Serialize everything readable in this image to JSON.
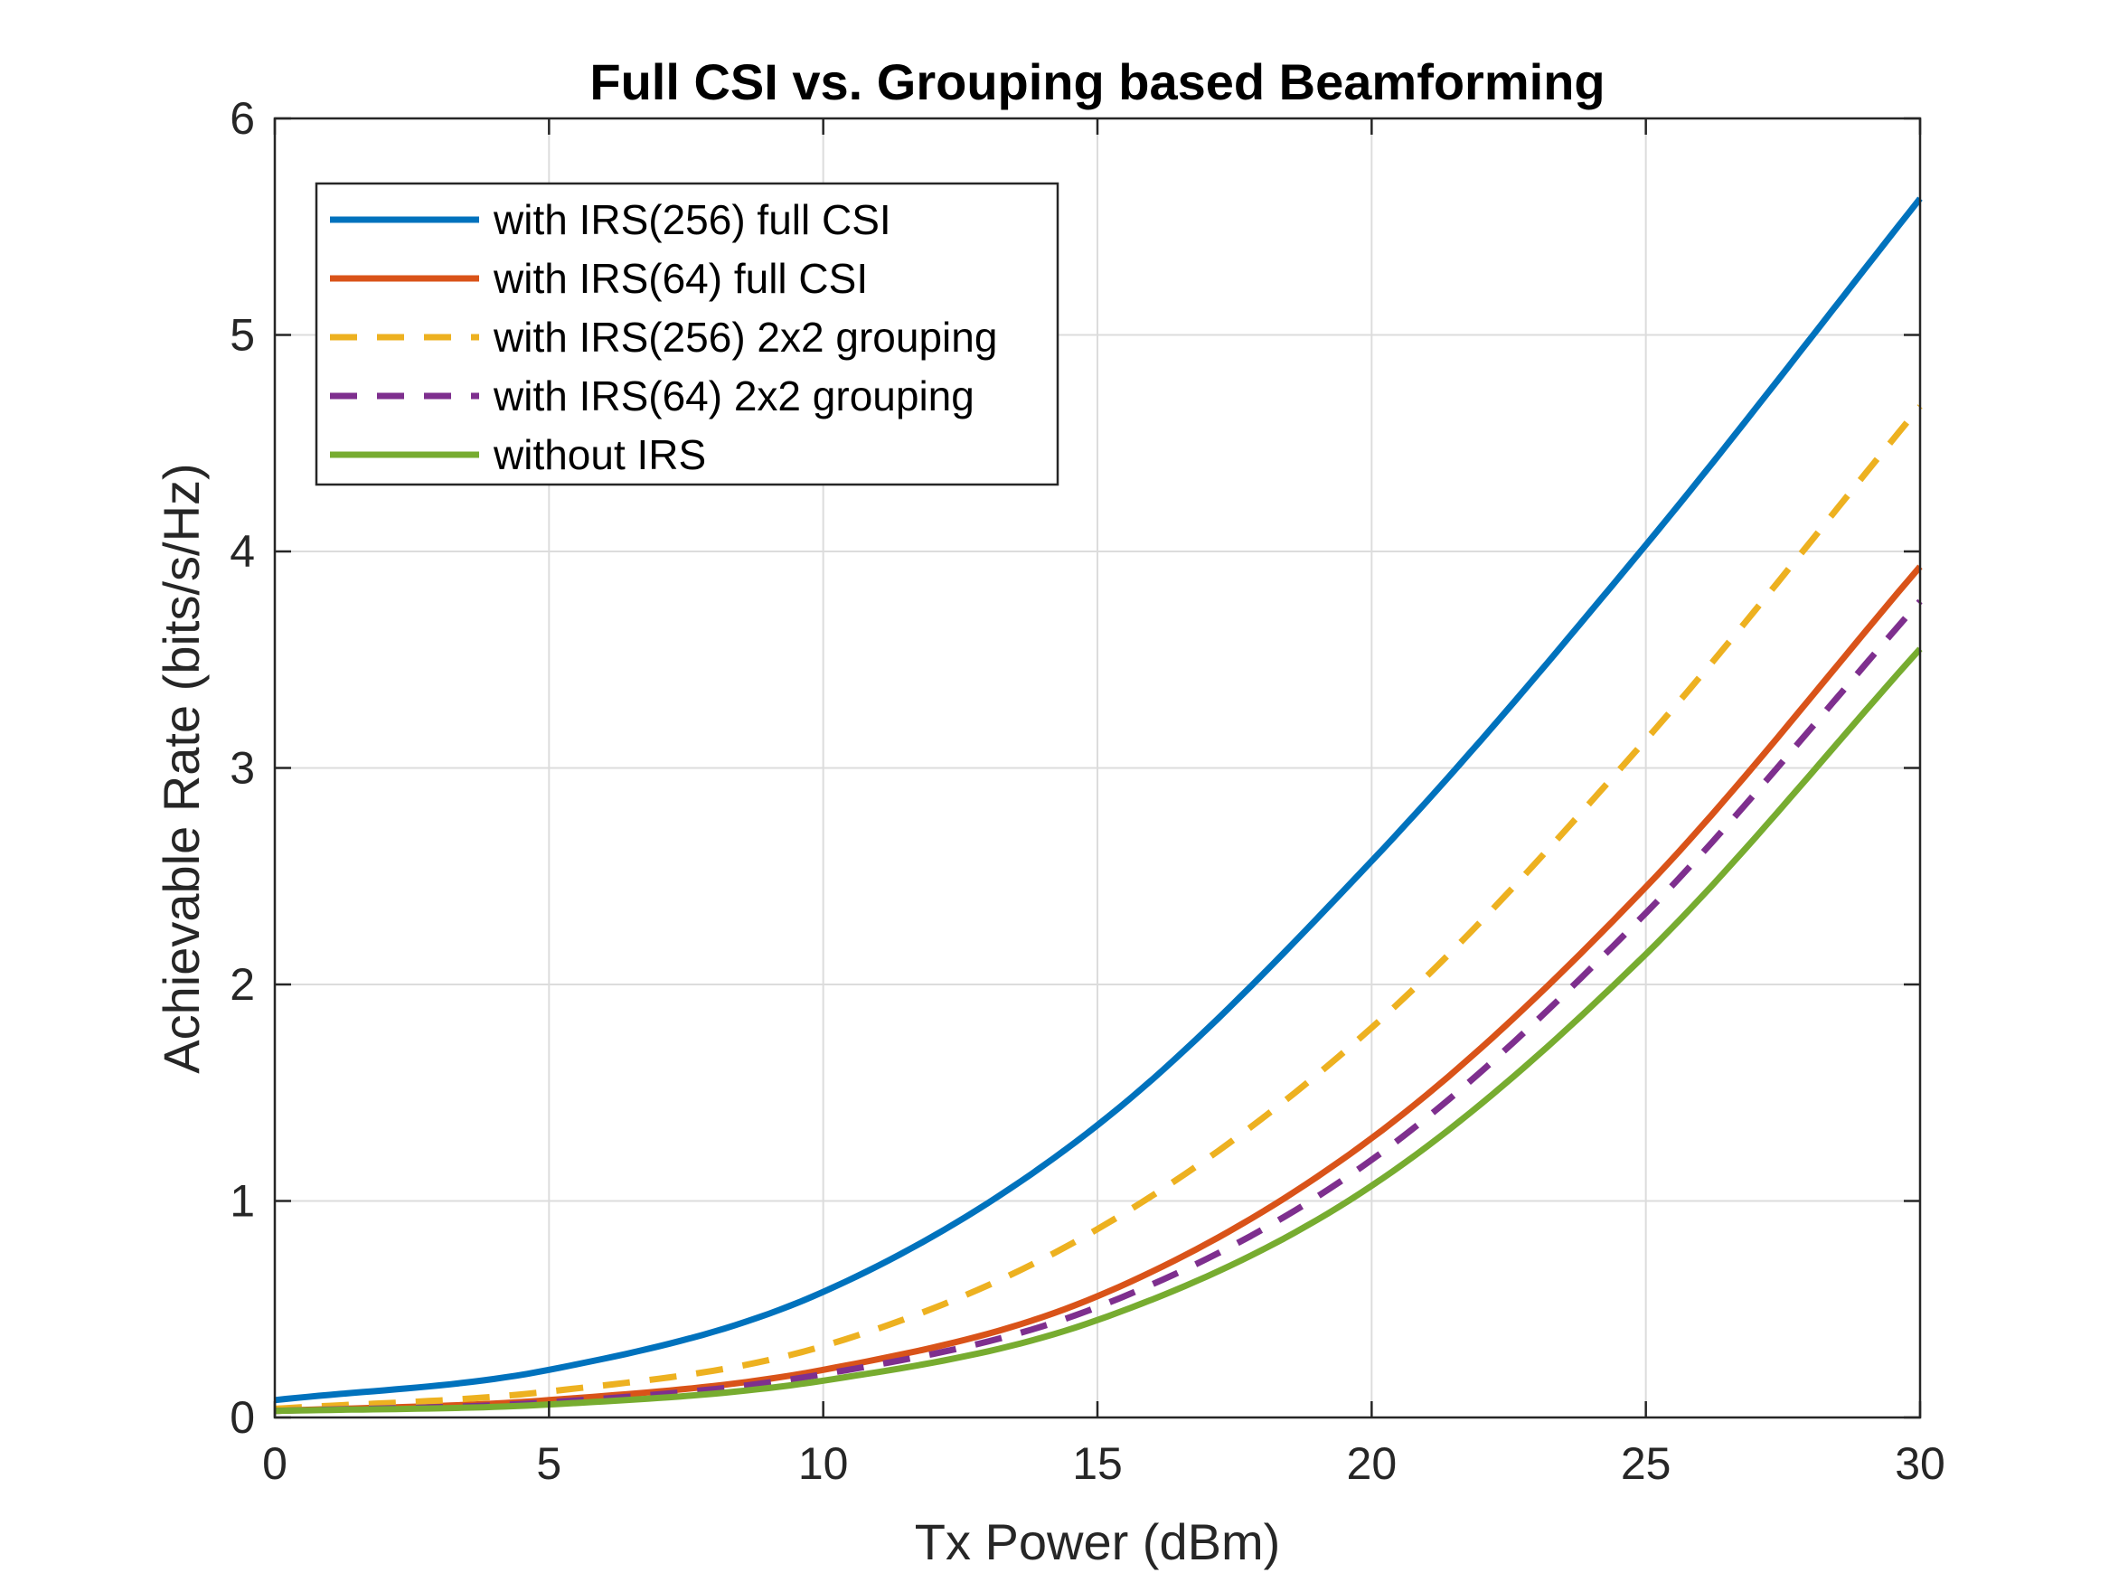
{
  "chart_data": {
    "type": "line",
    "title": "Full CSI vs. Grouping based Beamforming",
    "xlabel": "Tx Power (dBm)",
    "ylabel": "Achievable Rate (bits/s/Hz)",
    "xlim": [
      0,
      30
    ],
    "ylim": [
      0,
      6
    ],
    "xticks": [
      "0",
      "5",
      "10",
      "15",
      "20",
      "25",
      "30"
    ],
    "yticks": [
      "0",
      "1",
      "2",
      "3",
      "4",
      "5",
      "6"
    ],
    "grid": true,
    "legend_position": "top-left",
    "x": [
      0,
      5,
      10,
      15,
      20,
      25,
      30
    ],
    "series": [
      {
        "name": "with IRS(256) full CSI",
        "style": "solid",
        "color": "#0072BD",
        "values": [
          0.08,
          0.22,
          0.58,
          1.35,
          2.57,
          4.03,
          5.63
        ]
      },
      {
        "name": "with IRS(64) full CSI",
        "style": "solid",
        "color": "#D95319",
        "values": [
          0.03,
          0.08,
          0.22,
          0.56,
          1.29,
          2.45,
          3.93
        ]
      },
      {
        "name": "with IRS(256) 2x2 grouping",
        "style": "dashed",
        "color": "#EDB120",
        "values": [
          0.04,
          0.12,
          0.33,
          0.87,
          1.8,
          3.13,
          4.67
        ]
      },
      {
        "name": "with IRS(64) 2x2 grouping",
        "style": "dashed",
        "color": "#7E2F8E",
        "values": [
          0.03,
          0.07,
          0.2,
          0.51,
          1.19,
          2.33,
          3.77
        ]
      },
      {
        "name": "without IRS",
        "style": "solid",
        "color": "#77AC30",
        "values": [
          0.03,
          0.06,
          0.17,
          0.45,
          1.07,
          2.14,
          3.55
        ]
      }
    ]
  }
}
